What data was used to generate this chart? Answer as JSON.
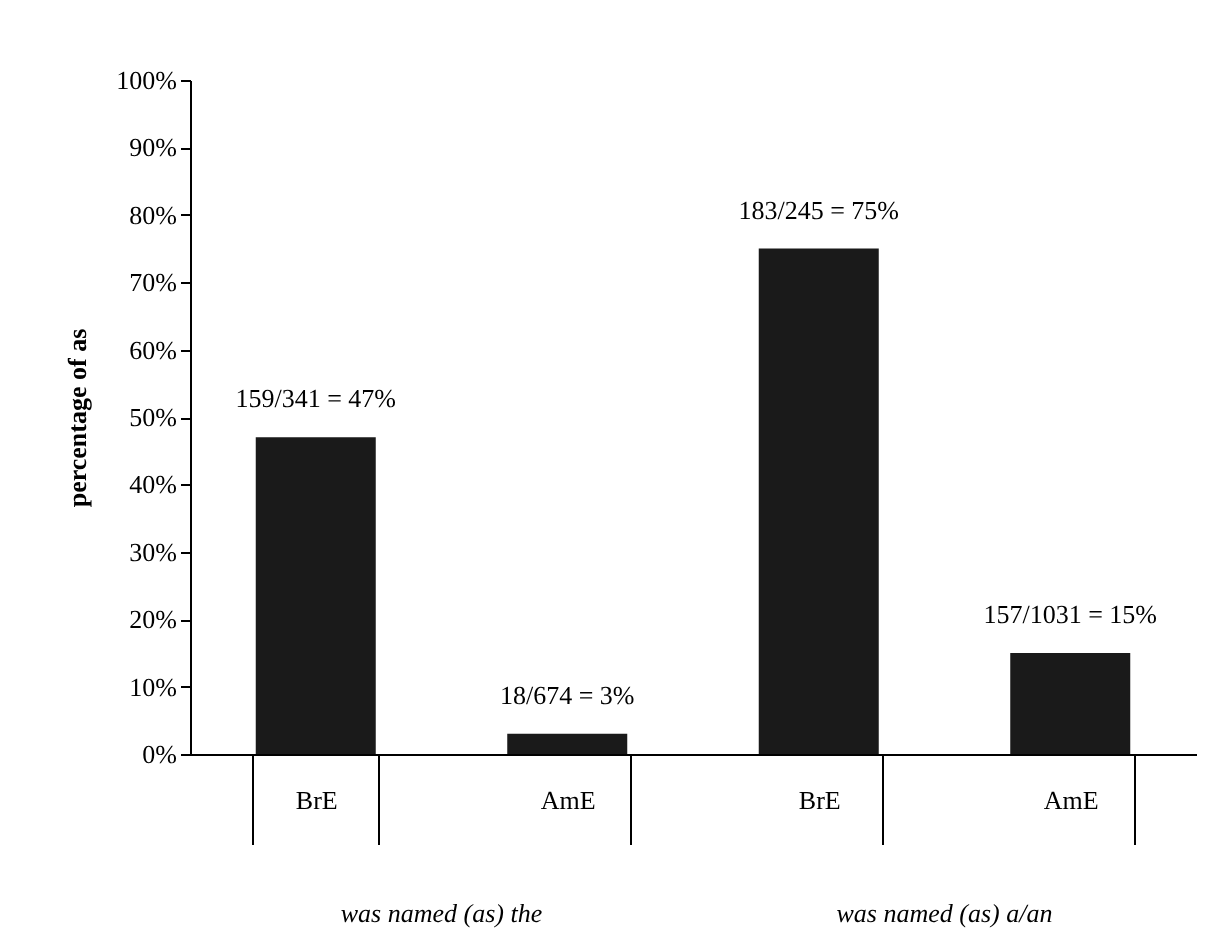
{
  "chart_data": {
    "type": "bar",
    "ylabel": "percentage of as",
    "categories": [
      "BrE",
      "AmE",
      "BrE",
      "AmE"
    ],
    "values": [
      47,
      3,
      75,
      15
    ],
    "value_labels": [
      "159/341 = 47%",
      "18/674 = 3%",
      "183/245 = 75%",
      "157/1031 = 15%"
    ],
    "color": "#1a1a1a",
    "ylim": [
      0,
      100
    ],
    "yticks": [
      {
        "value": 0,
        "label": "0%"
      },
      {
        "value": 10,
        "label": "10%"
      },
      {
        "value": 20,
        "label": "20%"
      },
      {
        "value": 30,
        "label": "30%"
      },
      {
        "value": 40,
        "label": "40%"
      },
      {
        "value": 50,
        "label": "50%"
      },
      {
        "value": 60,
        "label": "60%"
      },
      {
        "value": 70,
        "label": "70%"
      },
      {
        "value": 80,
        "label": "80%"
      },
      {
        "value": 90,
        "label": "90%"
      },
      {
        "value": 100,
        "label": "100%"
      }
    ],
    "annotations": [
      "was named (as) the",
      "was named (as) a/an"
    ],
    "grid": false
  }
}
